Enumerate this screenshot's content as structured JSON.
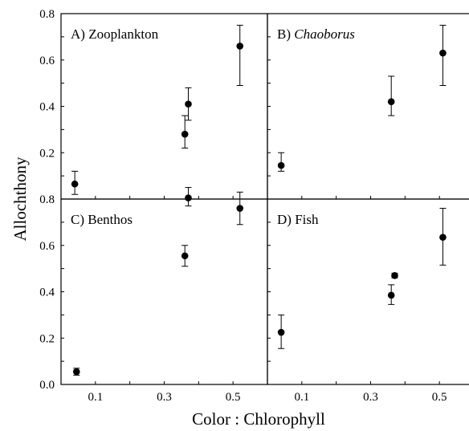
{
  "chart_data": {
    "type": "scatter",
    "xlabel": "Color : Chlorophyll",
    "ylabel": "Allochthony",
    "xlim": [
      0.0,
      0.6
    ],
    "ylim": [
      0.0,
      0.8
    ],
    "xticks": [
      "0.1",
      "0.3",
      "0.5"
    ],
    "yticks": [
      "0.0",
      "0.2",
      "0.4",
      "0.6",
      "0.8"
    ],
    "panels": [
      {
        "letter": "A)",
        "name": "Zooplankton",
        "italic": false,
        "points": [
          {
            "x": 0.04,
            "y": 0.065,
            "lo": 0.02,
            "hi": 0.12
          },
          {
            "x": 0.36,
            "y": 0.28,
            "lo": 0.22,
            "hi": 0.36
          },
          {
            "x": 0.37,
            "y": 0.41,
            "lo": 0.34,
            "hi": 0.48
          },
          {
            "x": 0.52,
            "y": 0.66,
            "lo": 0.49,
            "hi": 0.75
          }
        ]
      },
      {
        "letter": "B)",
        "name": "Chaoborus",
        "italic": true,
        "points": [
          {
            "x": 0.04,
            "y": 0.145,
            "lo": 0.12,
            "hi": 0.2
          },
          {
            "x": 0.36,
            "y": 0.42,
            "lo": 0.36,
            "hi": 0.53
          },
          {
            "x": 0.51,
            "y": 0.63,
            "lo": 0.49,
            "hi": 0.75
          }
        ]
      },
      {
        "letter": "C)",
        "name": "Benthos",
        "italic": false,
        "points": [
          {
            "x": 0.045,
            "y": 0.055,
            "lo": 0.04,
            "hi": 0.07
          },
          {
            "x": 0.36,
            "y": 0.555,
            "lo": 0.51,
            "hi": 0.6
          },
          {
            "x": 0.37,
            "y": 0.805,
            "lo": 0.77,
            "hi": 0.85
          },
          {
            "x": 0.52,
            "y": 0.76,
            "lo": 0.69,
            "hi": 0.83
          }
        ]
      },
      {
        "letter": "D)",
        "name": "Fish",
        "italic": false,
        "points": [
          {
            "x": 0.04,
            "y": 0.225,
            "lo": 0.155,
            "hi": 0.3
          },
          {
            "x": 0.36,
            "y": 0.385,
            "lo": 0.345,
            "hi": 0.43
          },
          {
            "x": 0.37,
            "y": 0.47,
            "lo": 0.46,
            "hi": 0.48
          },
          {
            "x": 0.51,
            "y": 0.635,
            "lo": 0.515,
            "hi": 0.76
          }
        ]
      }
    ]
  }
}
